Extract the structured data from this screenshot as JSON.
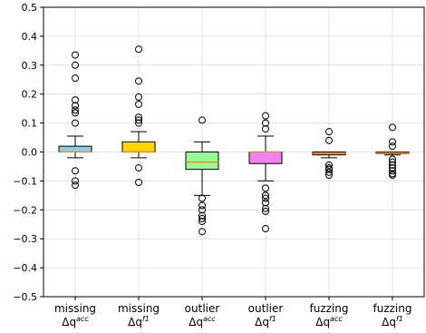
{
  "chart_data": {
    "type": "box",
    "grid": true,
    "ylim": [
      -0.5,
      0.5
    ],
    "yticks": [
      0.5,
      0.4,
      0.3,
      0.2,
      0.1,
      0.0,
      -0.1,
      -0.2,
      -0.3,
      -0.4,
      -0.5
    ],
    "ytick_labels": [
      "0.5",
      "0.4",
      "0.3",
      "0.2",
      "0.1",
      "0.0",
      "−0.1",
      "−0.2",
      "−0.3",
      "−0.4",
      "−0.5"
    ],
    "categories": [
      {
        "line1": "missing",
        "sym": "Δq",
        "sup": "acc"
      },
      {
        "line1": "missing",
        "sym": "Δq",
        "sup": "f1"
      },
      {
        "line1": "outlier",
        "sym": "Δq",
        "sup": "acc"
      },
      {
        "line1": "outlier",
        "sym": "Δq",
        "sup": "f1"
      },
      {
        "line1": "fuzzing",
        "sym": "Δq",
        "sup": "acc"
      },
      {
        "line1": "fuzzing",
        "sym": "Δq",
        "sup": "f1"
      }
    ],
    "boxes": [
      {
        "q1": 0.0,
        "median": 0.0,
        "q3": 0.02,
        "whisker_low": -0.02,
        "whisker_high": 0.055,
        "color": "#87ceeb",
        "outliers": [
          0.335,
          0.3,
          0.255,
          0.18,
          0.16,
          0.145,
          0.135,
          0.1,
          -0.065,
          -0.1,
          -0.115
        ]
      },
      {
        "q1": 0.0,
        "median": 0.0,
        "q3": 0.035,
        "whisker_low": -0.02,
        "whisker_high": 0.07,
        "color": "#ffd700",
        "outliers": [
          0.355,
          0.245,
          0.19,
          0.165,
          0.12,
          0.11,
          0.1,
          -0.055,
          -0.105
        ]
      },
      {
        "q1": -0.06,
        "median": -0.035,
        "q3": 0.0,
        "whisker_low": -0.15,
        "whisker_high": 0.035,
        "color": "#98fb98",
        "outliers": [
          0.11,
          -0.16,
          -0.185,
          -0.2,
          -0.22,
          -0.23,
          -0.24,
          -0.275
        ]
      },
      {
        "q1": -0.04,
        "median": 0.0,
        "q3": 0.0,
        "whisker_low": -0.1,
        "whisker_high": 0.055,
        "color": "#ee82ee",
        "outliers": [
          0.125,
          0.1,
          0.08,
          -0.125,
          -0.15,
          -0.16,
          -0.175,
          -0.195,
          -0.205,
          -0.265
        ]
      },
      {
        "q1": -0.01,
        "median": -0.005,
        "q3": 0.0,
        "whisker_low": -0.02,
        "whisker_high": 0.0,
        "color": "#f4a460",
        "outliers": [
          0.07,
          0.04,
          -0.045,
          -0.055,
          -0.06,
          -0.07,
          -0.08
        ]
      },
      {
        "q1": -0.005,
        "median": -0.003,
        "q3": 0.0,
        "whisker_low": -0.01,
        "whisker_high": 0.0,
        "color": "#f4a460",
        "outliers": [
          0.085,
          0.035,
          0.02,
          -0.025,
          -0.035,
          -0.045,
          -0.055,
          -0.065,
          -0.075,
          -0.08
        ]
      }
    ]
  }
}
